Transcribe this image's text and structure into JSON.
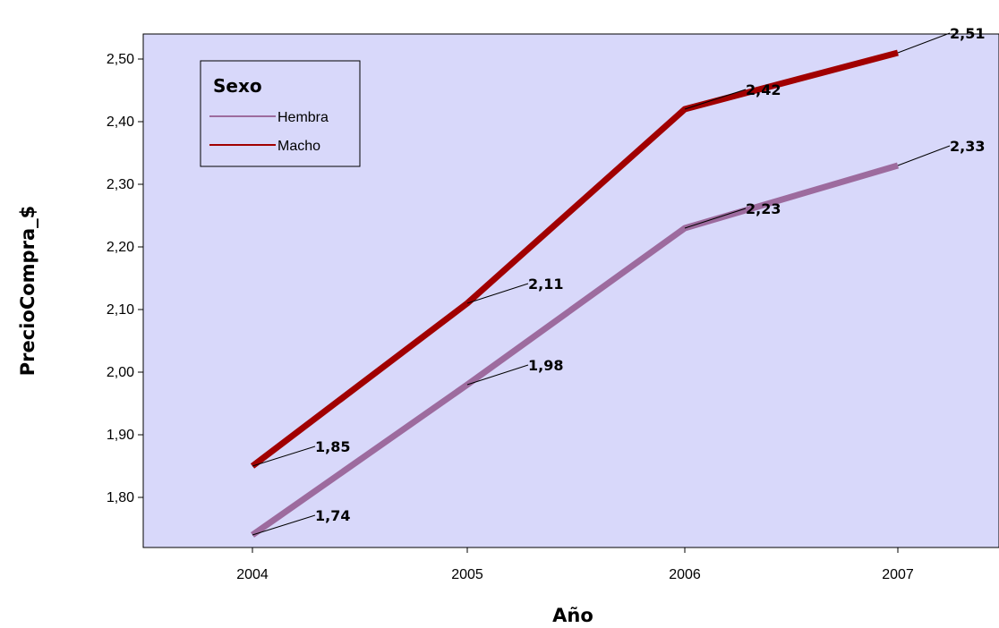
{
  "chart_data": {
    "type": "line",
    "xlabel": "Año",
    "ylabel": "PrecioCompra_$",
    "categories": [
      "2004",
      "2005",
      "2006",
      "2007"
    ],
    "ylim": [
      1.72,
      2.54
    ],
    "yticks": [
      "1,80",
      "1,90",
      "2,00",
      "2,10",
      "2,20",
      "2,30",
      "2,40",
      "2,50"
    ],
    "legend": {
      "title": "Sexo",
      "placement": "top-left"
    },
    "series": [
      {
        "name": "Hembra",
        "values": [
          1.74,
          1.98,
          2.23,
          2.33
        ],
        "labels": [
          "1,74",
          "1,98",
          "2,23",
          "2,33"
        ],
        "color": "#9d6b9e"
      },
      {
        "name": "Macho",
        "values": [
          1.85,
          2.11,
          2.42,
          2.51
        ],
        "labels": [
          "1,85",
          "2,11",
          "2,42",
          "2,51"
        ],
        "color": "#a10000"
      }
    ],
    "plot_background": "#d8d8fa",
    "grid": false
  }
}
